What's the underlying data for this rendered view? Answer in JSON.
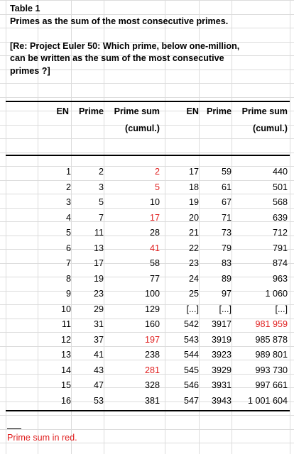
{
  "header": {
    "title": "Table 1",
    "subtitle": "Primes as the sum of the most consecutive primes.",
    "ref_line1": "[Re: Project Euler 50: Which prime, below one-million,",
    "ref_line2": "can be written as the sum of the most consecutive",
    "ref_line3": "primes ?]"
  },
  "columns": {
    "en": "EN",
    "prime": "Prime",
    "sum_line1": "Prime sum",
    "sum_line2": "(cumul.)"
  },
  "colors": {
    "highlight": "#e02020",
    "grid": "#dcdcdc"
  },
  "left_rows": [
    {
      "en": "1",
      "prime": "2",
      "sum": "2",
      "red": true
    },
    {
      "en": "2",
      "prime": "3",
      "sum": "5",
      "red": true
    },
    {
      "en": "3",
      "prime": "5",
      "sum": "10",
      "red": false
    },
    {
      "en": "4",
      "prime": "7",
      "sum": "17",
      "red": true
    },
    {
      "en": "5",
      "prime": "11",
      "sum": "28",
      "red": false
    },
    {
      "en": "6",
      "prime": "13",
      "sum": "41",
      "red": true
    },
    {
      "en": "7",
      "prime": "17",
      "sum": "58",
      "red": false
    },
    {
      "en": "8",
      "prime": "19",
      "sum": "77",
      "red": false
    },
    {
      "en": "9",
      "prime": "23",
      "sum": "100",
      "red": false
    },
    {
      "en": "10",
      "prime": "29",
      "sum": "129",
      "red": false
    },
    {
      "en": "11",
      "prime": "31",
      "sum": "160",
      "red": false
    },
    {
      "en": "12",
      "prime": "37",
      "sum": "197",
      "red": true
    },
    {
      "en": "13",
      "prime": "41",
      "sum": "238",
      "red": false
    },
    {
      "en": "14",
      "prime": "43",
      "sum": "281",
      "red": true
    },
    {
      "en": "15",
      "prime": "47",
      "sum": "328",
      "red": false
    },
    {
      "en": "16",
      "prime": "53",
      "sum": "381",
      "red": false
    }
  ],
  "right_rows": [
    {
      "en": "17",
      "prime": "59",
      "sum": "440",
      "red": false
    },
    {
      "en": "18",
      "prime": "61",
      "sum": "501",
      "red": false
    },
    {
      "en": "19",
      "prime": "67",
      "sum": "568",
      "red": false
    },
    {
      "en": "20",
      "prime": "71",
      "sum": "639",
      "red": false
    },
    {
      "en": "21",
      "prime": "73",
      "sum": "712",
      "red": false
    },
    {
      "en": "22",
      "prime": "79",
      "sum": "791",
      "red": false
    },
    {
      "en": "23",
      "prime": "83",
      "sum": "874",
      "red": false
    },
    {
      "en": "24",
      "prime": "89",
      "sum": "963",
      "red": false
    },
    {
      "en": "25",
      "prime": "97",
      "sum": "1 060",
      "red": false
    },
    {
      "en": "[...]",
      "prime": "[...]",
      "sum": "[...]",
      "red": false
    },
    {
      "en": "542",
      "prime": "3917",
      "sum": "981 959",
      "red": true
    },
    {
      "en": "543",
      "prime": "3919",
      "sum": "985 878",
      "red": false
    },
    {
      "en": "544",
      "prime": "3923",
      "sum": "989 801",
      "red": false
    },
    {
      "en": "545",
      "prime": "3929",
      "sum": "993 730",
      "red": false
    },
    {
      "en": "546",
      "prime": "3931",
      "sum": "997 661",
      "red": false
    },
    {
      "en": "547",
      "prime": "3943",
      "sum": "1 001 604",
      "red": false
    }
  ],
  "footnote": "Prime sum in red."
}
